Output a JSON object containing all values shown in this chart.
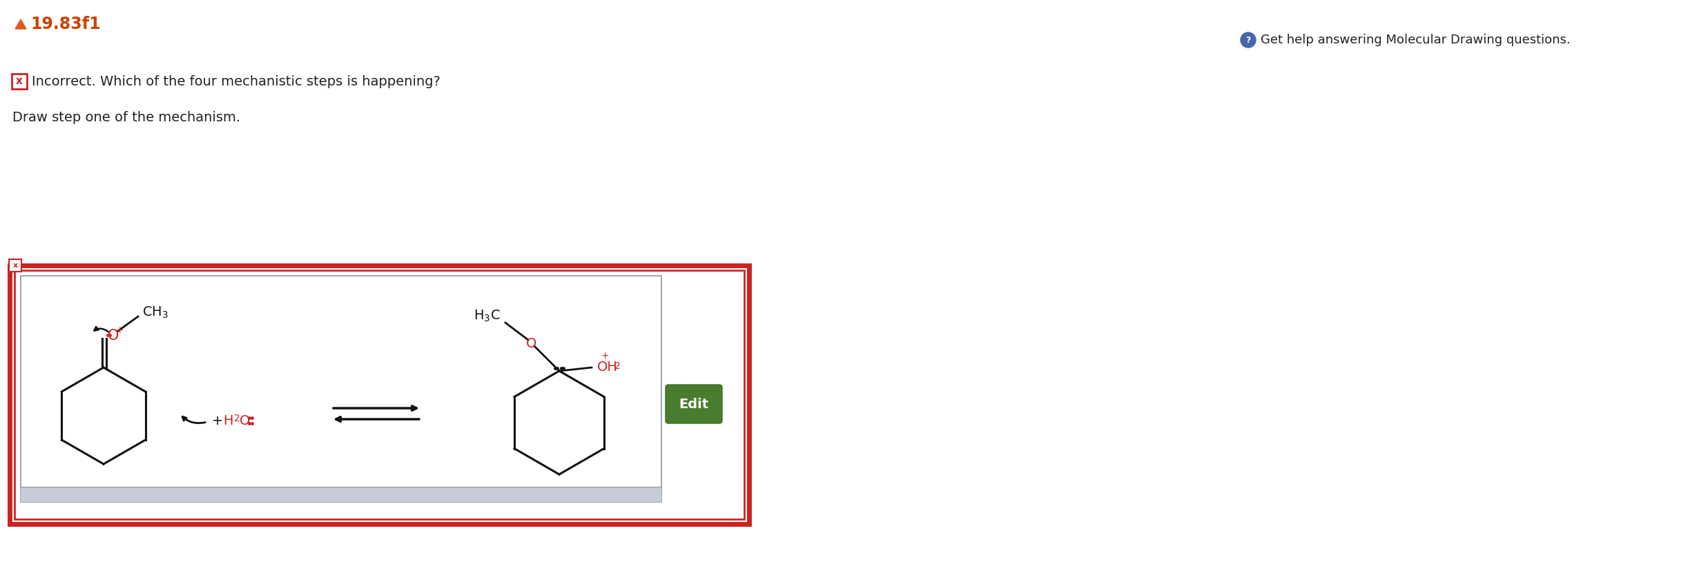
{
  "title": "19.83f1",
  "title_color": "#cc4400",
  "triangle_color": "#e05a20",
  "bg_color": "#ffffff",
  "incorrect_text": "Incorrect. Which of the four mechanistic steps is happening?",
  "instruction_text": "Draw step one of the mechanism.",
  "help_text": "Get help answering Molecular Drawing questions.",
  "edit_btn_color": "#4a7c2f",
  "edit_btn_text": "Edit",
  "box_border_color": "#cc2222",
  "red_color": "#cc2222",
  "black_color": "#111111",
  "gray_border": "#a0a8b8",
  "strip_color": "#c8ccd8",
  "help_circle_color": "#4466aa"
}
